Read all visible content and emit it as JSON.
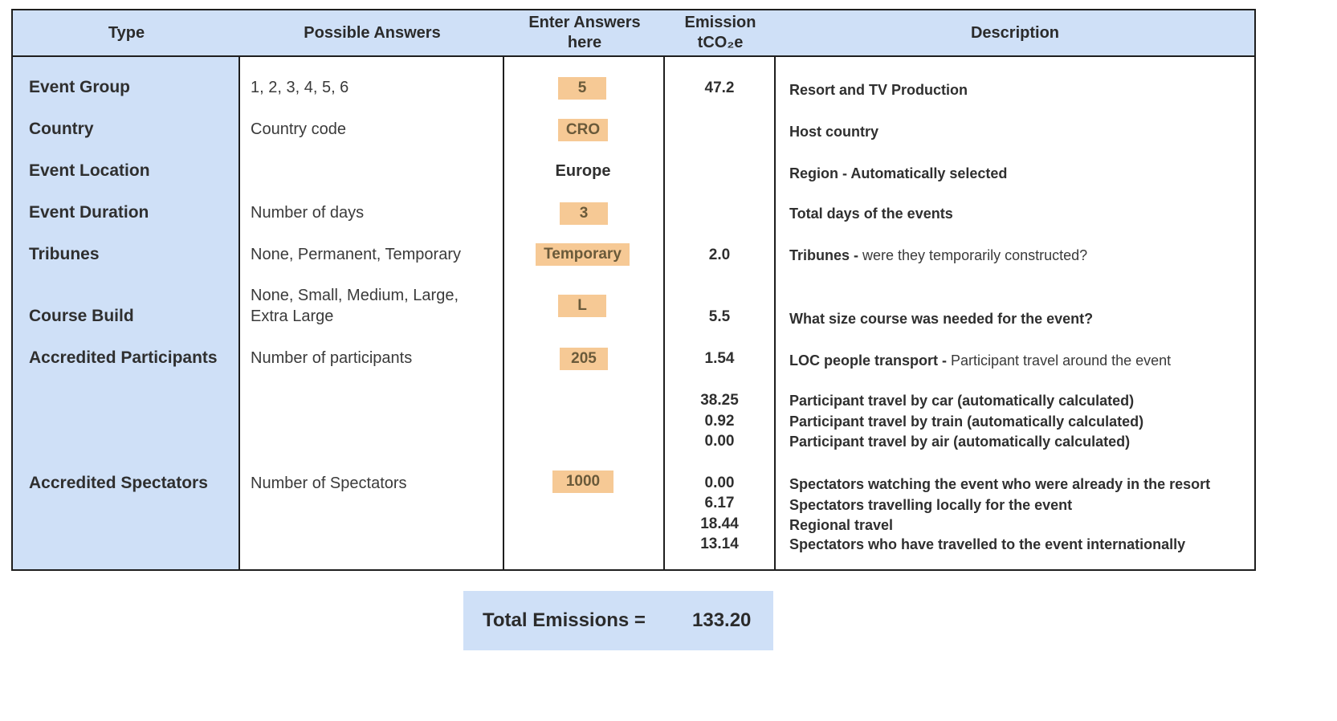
{
  "headers": {
    "type": "Type",
    "possible": "Possible Answers",
    "enter_line1": "Enter Answers",
    "enter_line2": "here",
    "emission_line1": "Emission",
    "emission_line2": "tCO₂e",
    "description": "Description"
  },
  "rows": [
    {
      "type": "Event Group",
      "possible": "1, 2, 3, 4, 5, 6",
      "answer": "5",
      "emission": "47.2",
      "desc_bold": "Resort and TV Production",
      "desc_normal": ""
    },
    {
      "type": "Country",
      "possible": "Country code",
      "answer": "CRO",
      "emission": "",
      "desc_bold": "Host country",
      "desc_normal": ""
    },
    {
      "type": "Event Location",
      "possible": "",
      "answer": "Europe",
      "emission": "",
      "desc_bold": "Region - Automatically selected",
      "desc_normal": ""
    },
    {
      "type": "Event Duration",
      "possible": "Number of days",
      "answer": "3",
      "emission": "",
      "desc_bold": "Total days of the events",
      "desc_normal": ""
    },
    {
      "type": "Tribunes",
      "possible": "None, Permanent, Temporary",
      "answer": "Temporary",
      "emission": "2.0",
      "desc_bold": "Tribunes - ",
      "desc_normal": "were they temporarily constructed?"
    },
    {
      "type": "Course Build",
      "possible_line1": "None, Small, Medium, Large,",
      "possible_line2": "Extra Large",
      "answer": "L",
      "emission": "5.5",
      "desc_bold": "What size course was needed for the event?",
      "desc_normal": ""
    },
    {
      "type": "Accredited Participants",
      "possible": "Number of participants",
      "answer": "205",
      "emission": "1.54",
      "desc_bold": "LOC people transport - ",
      "desc_normal": "Participant travel around the event"
    }
  ],
  "participant_travel": [
    {
      "emission": "38.25",
      "desc": "Participant travel by car (automatically calculated)"
    },
    {
      "emission": "0.92",
      "desc": "Participant travel by train (automatically calculated)"
    },
    {
      "emission": "0.00",
      "desc": "Participant travel by air (automatically calculated)"
    }
  ],
  "spectators": {
    "type": "Accredited Spectators",
    "possible": "Number of Spectators",
    "answer": "1000",
    "items": [
      {
        "emission": "0.00",
        "desc": "Spectators watching the event who were already in the resort"
      },
      {
        "emission": "6.17",
        "desc": "Spectators travelling locally for the event"
      },
      {
        "emission": "18.44",
        "desc": "Regional travel"
      },
      {
        "emission": "13.14",
        "desc": "Spectators who have travelled to the event internationally"
      }
    ]
  },
  "total": {
    "label": "Total Emissions =",
    "value": "133.20"
  },
  "colors": {
    "header_fill": "#cfe0f7",
    "answer_fill": "#f6c995",
    "border": "#1e1e1e"
  }
}
